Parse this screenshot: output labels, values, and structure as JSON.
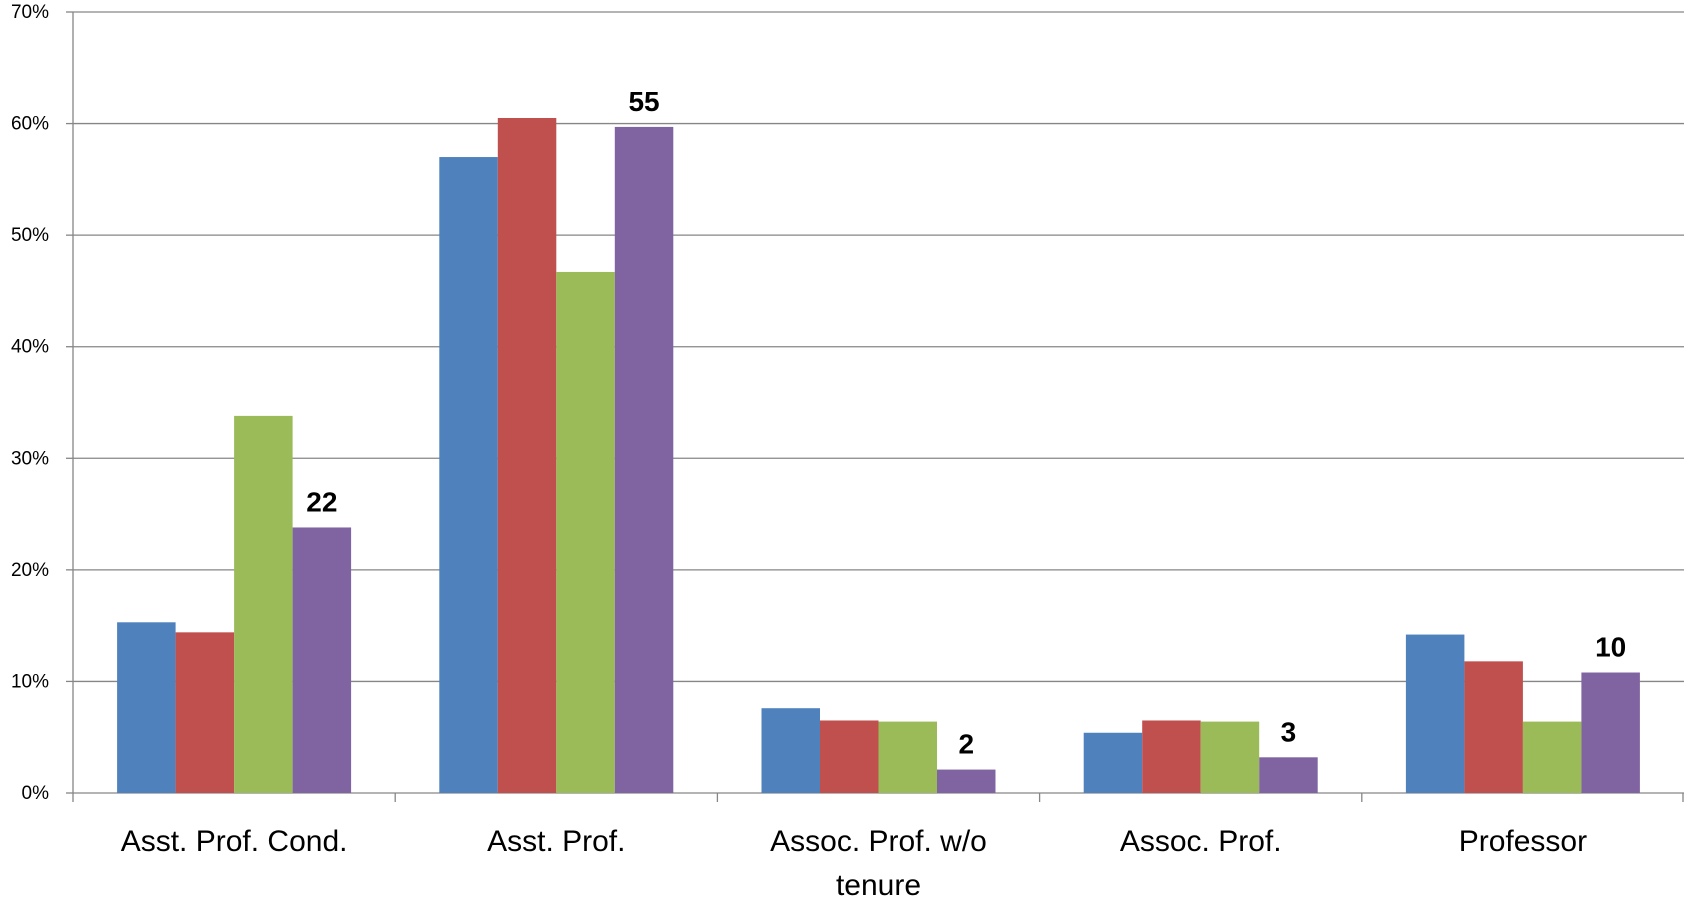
{
  "chart_data": {
    "type": "bar",
    "title": "",
    "xlabel": "",
    "ylabel": "",
    "ylim": [
      0,
      70
    ],
    "yticks": [
      "0%",
      "10%",
      "20%",
      "30%",
      "40%",
      "50%",
      "60%",
      "70%"
    ],
    "grid": true,
    "legend": "none",
    "categories": [
      [
        "Asst. Prof. Cond."
      ],
      [
        "Asst. Prof."
      ],
      [
        "Assoc. Prof. w/o",
        "tenure"
      ],
      [
        "Assoc. Prof."
      ],
      [
        "Professor"
      ]
    ],
    "series": [
      {
        "color": "#4F81BD",
        "values": [
          15.3,
          57.0,
          7.6,
          5.4,
          14.2
        ]
      },
      {
        "color": "#C0504D",
        "values": [
          14.4,
          60.5,
          6.5,
          6.5,
          11.8
        ]
      },
      {
        "color": "#9BBB59",
        "values": [
          33.8,
          46.7,
          6.4,
          6.4,
          6.4
        ]
      },
      {
        "color": "#8064A2",
        "values": [
          23.8,
          59.7,
          2.1,
          3.2,
          10.8
        ]
      }
    ],
    "data_labels": [
      "22",
      "55",
      "2",
      "3",
      "10"
    ]
  }
}
